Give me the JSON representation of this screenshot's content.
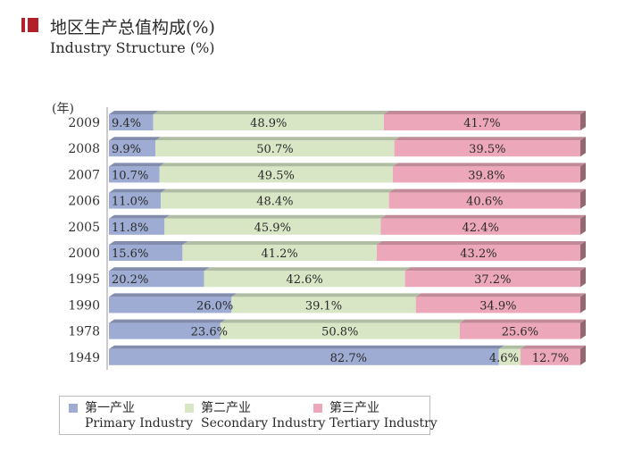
{
  "title": {
    "zh": "地区生产总值构成(%)",
    "en": "Industry Structure (%)"
  },
  "colors": {
    "title_mark": "#b3202a",
    "primary": "#9eacd3",
    "secondary": "#d8e6c6",
    "tertiary": "#eca8ba"
  },
  "legend": {
    "primary": {
      "zh": "第一产业",
      "en": "Primary Industry"
    },
    "secondary": {
      "zh": "第二产业",
      "en": "Secondary Industry"
    },
    "tertiary": {
      "zh": "第三产业",
      "en": "Tertiary Industry"
    }
  },
  "chart_data": {
    "type": "bar",
    "orientation": "horizontal",
    "stacked": true,
    "percent_stacked": true,
    "y_axis_unit": "(年)",
    "categories": [
      "2009",
      "2008",
      "2007",
      "2006",
      "2005",
      "2000",
      "1995",
      "1990",
      "1978",
      "1949"
    ],
    "series": [
      {
        "name": "第一产业 Primary Industry",
        "values": [
          9.4,
          9.9,
          10.7,
          11.0,
          11.8,
          15.6,
          20.2,
          26.0,
          23.6,
          82.7
        ],
        "labels": [
          "9.4%",
          "9.9%",
          "10.7%",
          "11.0%",
          "11.8%",
          "15.6%",
          "20.2%",
          "26.0%",
          "23.6%",
          "82.7%"
        ]
      },
      {
        "name": "第二产业 Secondary Industry",
        "values": [
          48.9,
          50.7,
          49.5,
          48.4,
          45.9,
          41.2,
          42.6,
          39.1,
          50.8,
          4.6
        ],
        "labels": [
          "48.9%",
          "50.7%",
          "49.5%",
          "48.4%",
          "45.9%",
          "41.2%",
          "42.6%",
          "39.1%",
          "50.8%",
          "4.6%"
        ]
      },
      {
        "name": "第三产业 Tertiary Industry",
        "values": [
          41.7,
          39.5,
          39.8,
          40.6,
          42.4,
          43.2,
          37.2,
          34.9,
          25.6,
          12.7
        ],
        "labels": [
          "41.7%",
          "39.5%",
          "39.8%",
          "40.6%",
          "42.4%",
          "43.2%",
          "37.2%",
          "34.9%",
          "25.6%",
          "12.7%"
        ]
      }
    ],
    "xlim": [
      0,
      100
    ],
    "legend_position": "bottom",
    "grid": false
  }
}
